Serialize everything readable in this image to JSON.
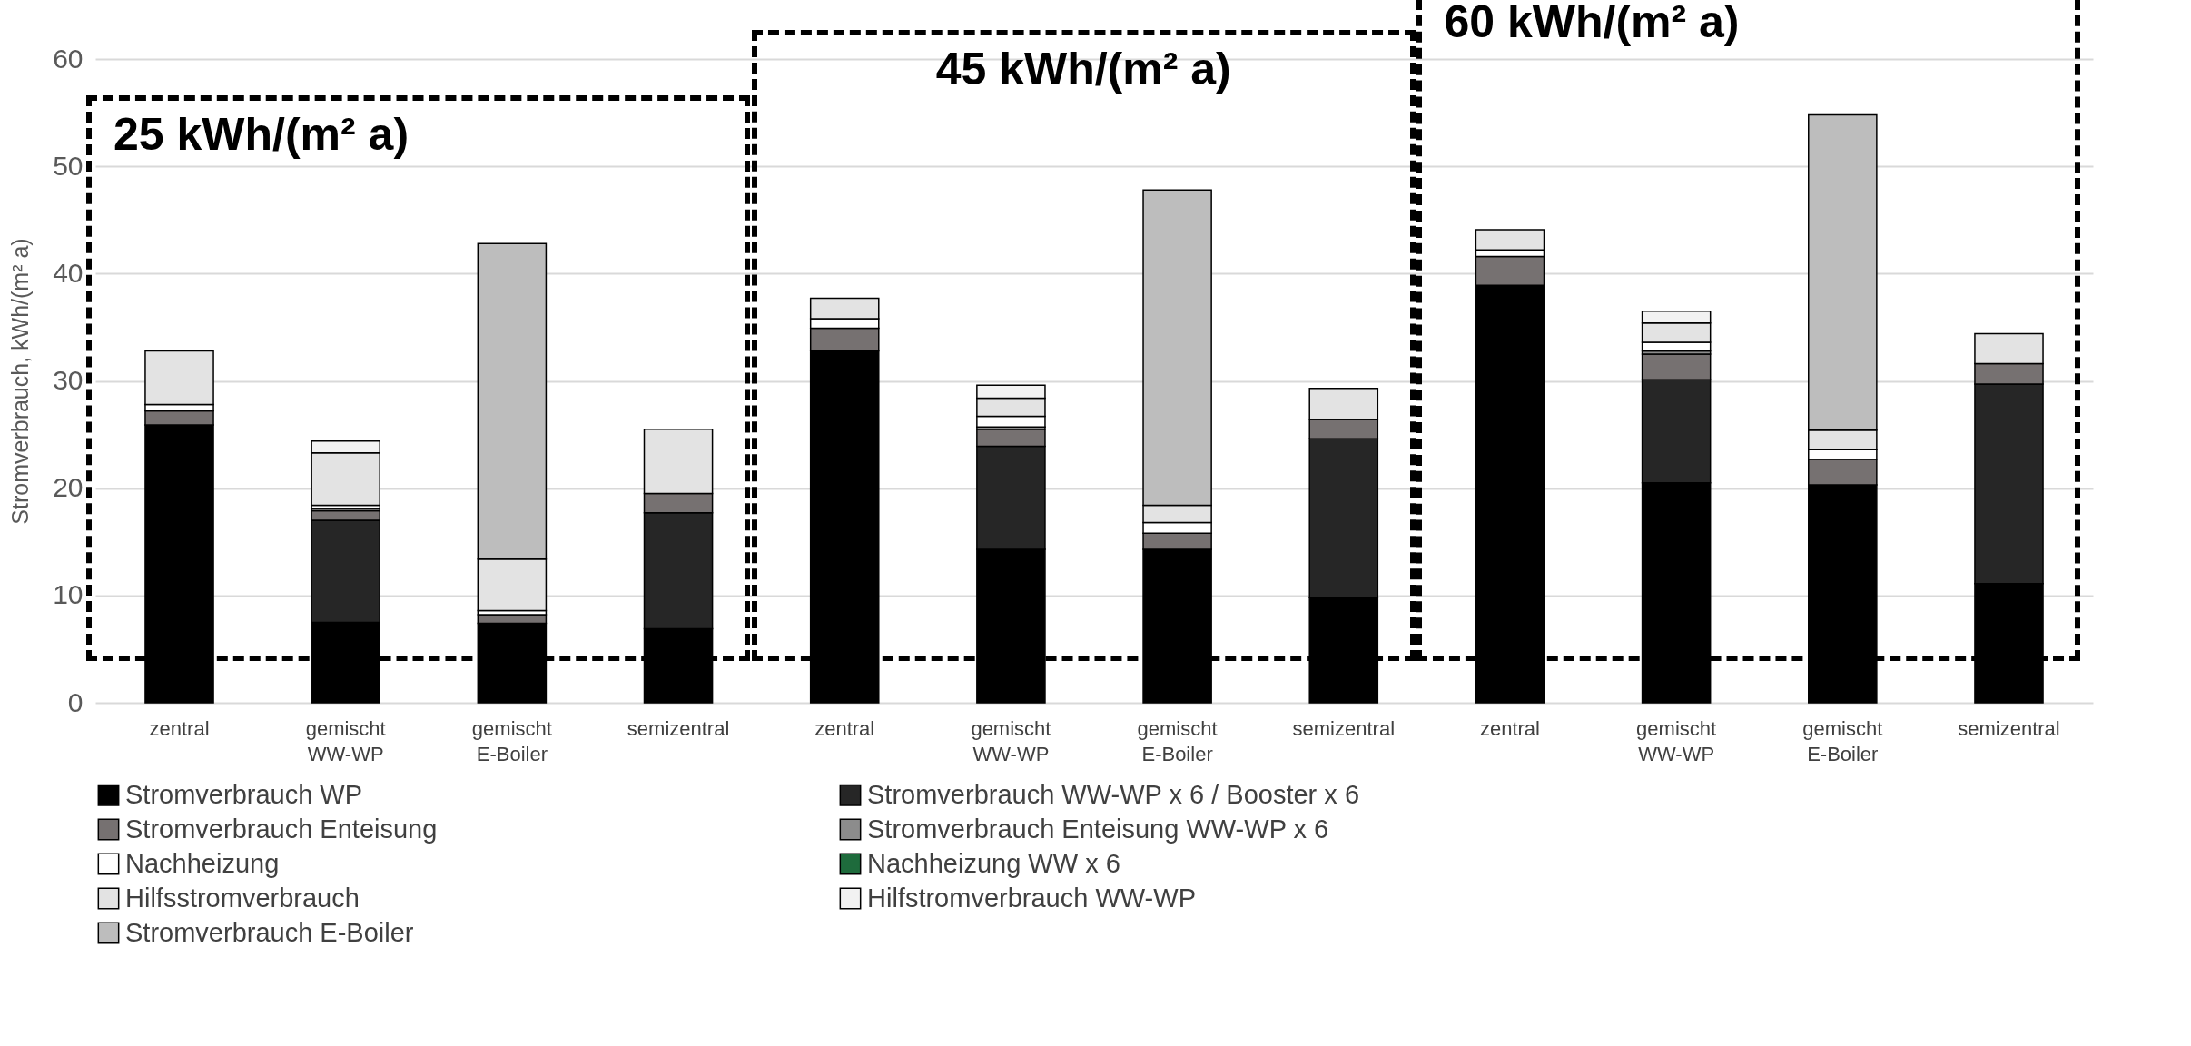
{
  "chart_data": {
    "type": "bar",
    "stacked": true,
    "ylabel": "Stromverbrauch, kWh/(m² a)",
    "categories": [
      "zentral",
      "gemischt WW-WP",
      "gemischt E-Boiler",
      "semizentral",
      "zentral",
      "gemischt WW-WP",
      "gemischt E-Boiler",
      "semizentral",
      "zentral",
      "gemischt WW-WP",
      "gemischt E-Boiler",
      "semizentral"
    ],
    "series": [
      {
        "name": "Stromverbrauch WP",
        "color": "#000000",
        "values": [
          25.9,
          7.5,
          7.4,
          6.9,
          32.8,
          14.3,
          14.3,
          9.8,
          38.9,
          20.5,
          20.3,
          11.1
        ]
      },
      {
        "name": "Stromverbrauch WW-WP x 6 / Booster x 6",
        "color": "#262626",
        "values": [
          null,
          9.5,
          null,
          10.8,
          null,
          9.6,
          null,
          14.8,
          null,
          9.6,
          null,
          18.6
        ]
      },
      {
        "name": "Stromverbrauch Enteisung",
        "color": "#767171",
        "values": [
          1.3,
          0.9,
          0.8,
          1.8,
          2.1,
          1.6,
          1.5,
          1.8,
          2.7,
          2.4,
          2.4,
          1.9
        ]
      },
      {
        "name": "Stromverbrauch Enteisung WW-WP x 6",
        "color": "#8c8c8c",
        "values": [
          null,
          0.2,
          null,
          null,
          null,
          0.2,
          null,
          null,
          null,
          0.3,
          null,
          null
        ]
      },
      {
        "name": "Nachheizung",
        "color": "#ffffff",
        "values": [
          0.6,
          0.3,
          0.4,
          null,
          0.9,
          1.0,
          1.0,
          null,
          0.6,
          0.8,
          0.9,
          null
        ]
      },
      {
        "name": "Nachheizung WW x 6",
        "color": "#1e6b3c",
        "values": [
          null,
          null,
          null,
          null,
          null,
          null,
          null,
          null,
          null,
          null,
          null,
          null
        ]
      },
      {
        "name": "Hilfsstromverbrauch",
        "color": "#e3e3e3",
        "values": [
          5.0,
          4.9,
          4.8,
          6.0,
          1.9,
          1.7,
          1.6,
          2.9,
          1.9,
          1.8,
          1.8,
          2.8
        ]
      },
      {
        "name": "Hilfstromverbrauch WW-WP",
        "color": "#f2f2f2",
        "values": [
          null,
          1.1,
          null,
          null,
          null,
          1.2,
          null,
          null,
          null,
          1.1,
          null,
          null
        ]
      },
      {
        "name": "Stromverbrauch E-Boiler",
        "color": "#bdbdbd",
        "values": [
          null,
          null,
          29.4,
          null,
          null,
          null,
          29.4,
          null,
          null,
          null,
          29.4,
          null
        ]
      }
    ],
    "ylim": [
      0,
      60
    ],
    "yticks": [
      0,
      10,
      20,
      30,
      40,
      50,
      60
    ],
    "grid": "y",
    "legend": "bottom",
    "annotations": [
      "25 kWh/(m² a)",
      "45 kWh/(m² a)",
      "60 kWh/(m² a)"
    ]
  }
}
